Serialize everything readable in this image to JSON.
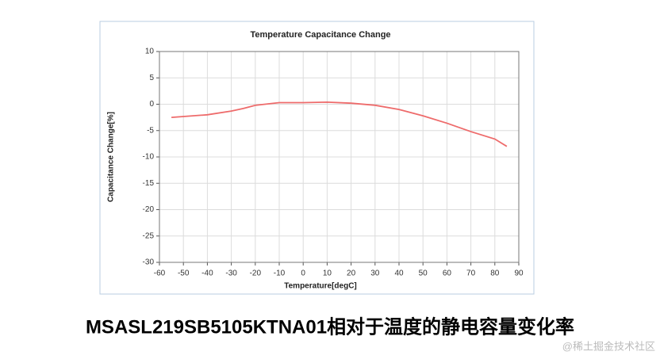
{
  "chart_data": {
    "type": "line",
    "title": "Temperature Capacitance Change",
    "x_label": "Temperature[degC]",
    "y_label": "Capacitance Change[%]",
    "x": [
      -55,
      -40,
      -30,
      -25,
      -20,
      -10,
      0,
      10,
      20,
      30,
      40,
      50,
      60,
      70,
      80,
      85
    ],
    "values": [
      -2.5,
      -2.0,
      -1.3,
      -0.8,
      -0.2,
      0.3,
      0.3,
      0.4,
      0.2,
      -0.2,
      -1.0,
      -2.2,
      -3.6,
      -5.2,
      -6.6,
      -8.0
    ],
    "color": "#ee6b6b",
    "xlim": [
      -60,
      90
    ],
    "xticks": [
      -60,
      -50,
      -40,
      -30,
      -20,
      -10,
      0,
      10,
      20,
      30,
      40,
      50,
      60,
      70,
      80,
      90
    ],
    "ylim": [
      -30,
      10
    ],
    "yticks": [
      10,
      5,
      0,
      -5,
      -10,
      -15,
      -20,
      -25,
      -30
    ],
    "grid": true
  },
  "caption": "MSASL219SB5105KTNA01相对于温度的静电容量变化率",
  "watermark": "@稀土掘金技术社区"
}
